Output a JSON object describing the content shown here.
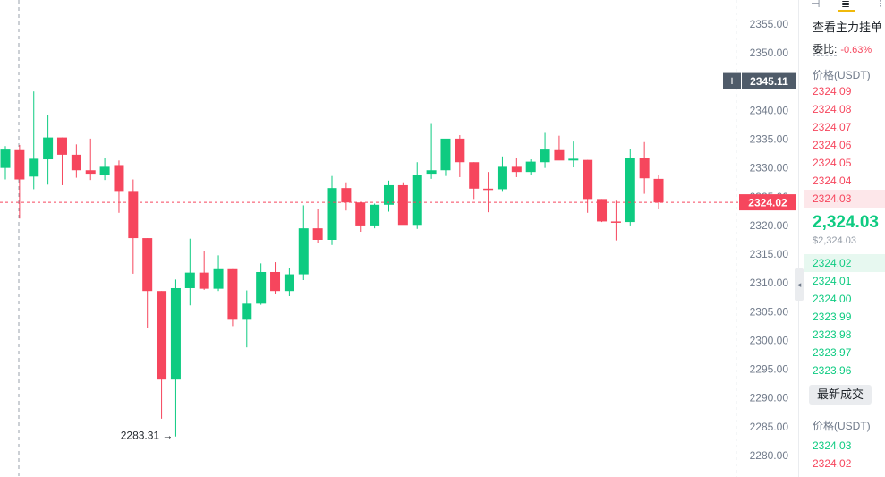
{
  "chart_data": {
    "type": "candlestick",
    "y_ticks": [
      "2355.00",
      "2350.00",
      "2345.00",
      "2340.00",
      "2335.00",
      "2330.00",
      "2325.00",
      "2320.00",
      "2315.00",
      "2310.00",
      "2305.00",
      "2300.00",
      "2295.00",
      "2290.00",
      "2285.00",
      "2280.00"
    ],
    "ylim": [
      2278.5,
      2357.8
    ],
    "crosshair_price": "2345.11",
    "current_price": "2324.02",
    "low_marker": "2283.31",
    "low_arrow": "→",
    "crosshair_plus": "+",
    "candles": [
      {
        "o": 2330.0,
        "h": 2333.8,
        "l": 2328.0,
        "c": 2333.2
      },
      {
        "o": 2333.1,
        "h": 2334.0,
        "l": 2321.2,
        "c": 2328.0
      },
      {
        "o": 2328.5,
        "h": 2343.3,
        "l": 2326.3,
        "c": 2331.6
      },
      {
        "o": 2331.5,
        "h": 2339.2,
        "l": 2327.1,
        "c": 2335.3
      },
      {
        "o": 2335.3,
        "h": 2335.3,
        "l": 2327.0,
        "c": 2332.3
      },
      {
        "o": 2332.3,
        "h": 2334.1,
        "l": 2328.3,
        "c": 2329.6
      },
      {
        "o": 2329.6,
        "h": 2335.1,
        "l": 2327.9,
        "c": 2329.0
      },
      {
        "o": 2328.8,
        "h": 2331.8,
        "l": 2327.9,
        "c": 2330.2
      },
      {
        "o": 2330.5,
        "h": 2331.3,
        "l": 2322.2,
        "c": 2326.0
      },
      {
        "o": 2326.0,
        "h": 2328.0,
        "l": 2311.6,
        "c": 2317.8
      },
      {
        "o": 2317.8,
        "h": 2317.8,
        "l": 2302.1,
        "c": 2308.6
      },
      {
        "o": 2308.6,
        "h": 2308.6,
        "l": 2286.4,
        "c": 2293.2
      },
      {
        "o": 2293.2,
        "h": 2310.6,
        "l": 2283.3,
        "c": 2309.1
      },
      {
        "o": 2309.1,
        "h": 2317.7,
        "l": 2306.1,
        "c": 2311.8
      },
      {
        "o": 2311.8,
        "h": 2315.6,
        "l": 2308.8,
        "c": 2309.0
      },
      {
        "o": 2309.0,
        "h": 2314.8,
        "l": 2308.6,
        "c": 2312.4
      },
      {
        "o": 2312.4,
        "h": 2312.4,
        "l": 2302.5,
        "c": 2303.6
      },
      {
        "o": 2303.6,
        "h": 2308.7,
        "l": 2298.8,
        "c": 2306.4
      },
      {
        "o": 2306.4,
        "h": 2313.4,
        "l": 2306.2,
        "c": 2311.9
      },
      {
        "o": 2311.9,
        "h": 2313.6,
        "l": 2308.1,
        "c": 2308.6
      },
      {
        "o": 2308.6,
        "h": 2312.6,
        "l": 2307.7,
        "c": 2311.5
      },
      {
        "o": 2311.5,
        "h": 2323.5,
        "l": 2310.5,
        "c": 2319.5
      },
      {
        "o": 2319.5,
        "h": 2322.9,
        "l": 2316.9,
        "c": 2317.5
      },
      {
        "o": 2317.5,
        "h": 2328.6,
        "l": 2316.6,
        "c": 2326.5
      },
      {
        "o": 2326.5,
        "h": 2327.5,
        "l": 2322.6,
        "c": 2324.0
      },
      {
        "o": 2324.0,
        "h": 2324.0,
        "l": 2318.9,
        "c": 2320.0
      },
      {
        "o": 2320.0,
        "h": 2323.8,
        "l": 2319.5,
        "c": 2323.6
      },
      {
        "o": 2323.6,
        "h": 2327.8,
        "l": 2322.4,
        "c": 2327.0
      },
      {
        "o": 2327.0,
        "h": 2327.5,
        "l": 2320.8,
        "c": 2320.1
      },
      {
        "o": 2320.1,
        "h": 2331.0,
        "l": 2319.4,
        "c": 2328.8
      },
      {
        "o": 2329.0,
        "h": 2337.8,
        "l": 2328.1,
        "c": 2329.6
      },
      {
        "o": 2329.6,
        "h": 2334.9,
        "l": 2328.6,
        "c": 2335.1
      },
      {
        "o": 2335.1,
        "h": 2335.7,
        "l": 2328.4,
        "c": 2331.0
      },
      {
        "o": 2331.0,
        "h": 2331.0,
        "l": 2324.6,
        "c": 2326.4
      },
      {
        "o": 2326.4,
        "h": 2329.3,
        "l": 2322.3,
        "c": 2326.3
      },
      {
        "o": 2326.3,
        "h": 2332.0,
        "l": 2326.0,
        "c": 2330.2
      },
      {
        "o": 2330.2,
        "h": 2331.8,
        "l": 2328.4,
        "c": 2329.3
      },
      {
        "o": 2329.3,
        "h": 2331.5,
        "l": 2328.8,
        "c": 2331.1
      },
      {
        "o": 2331.0,
        "h": 2336.1,
        "l": 2330.0,
        "c": 2333.2
      },
      {
        "o": 2333.1,
        "h": 2335.6,
        "l": 2331.4,
        "c": 2331.3
      },
      {
        "o": 2331.3,
        "h": 2334.6,
        "l": 2330.1,
        "c": 2331.6
      },
      {
        "o": 2331.4,
        "h": 2331.4,
        "l": 2322.2,
        "c": 2324.6
      },
      {
        "o": 2324.6,
        "h": 2324.6,
        "l": 2320.6,
        "c": 2320.7
      },
      {
        "o": 2320.7,
        "h": 2324.3,
        "l": 2317.4,
        "c": 2320.6
      },
      {
        "o": 2320.6,
        "h": 2333.3,
        "l": 2320.0,
        "c": 2331.8
      },
      {
        "o": 2331.8,
        "h": 2334.5,
        "l": 2325.5,
        "c": 2328.2
      },
      {
        "o": 2328.1,
        "h": 2328.8,
        "l": 2322.8,
        "c": 2324.0
      }
    ]
  },
  "panel": {
    "tool_icons": [
      "⊣",
      "≣",
      "⁝"
    ],
    "title": "查看主力挂单",
    "ratio_label": "委比:",
    "ratio_value": "-0.63%",
    "col_header": "价格(USDT)",
    "asks": [
      "2324.09",
      "2324.08",
      "2324.07",
      "2324.06",
      "2324.05",
      "2324.04",
      "2324.03"
    ],
    "last_price": "2,324.03",
    "last_price_usd": "$2,324.03",
    "bids": [
      "2324.02",
      "2324.01",
      "2324.00",
      "2323.99",
      "2323.98",
      "2323.97",
      "2323.96"
    ],
    "latest_trades_button": "最新成交",
    "trades_header": "价格(USDT)",
    "trades": [
      {
        "price": "2324.03",
        "side": "buy"
      },
      {
        "price": "2324.02",
        "side": "sell"
      }
    ]
  },
  "colors": {
    "up": "#0ecb81",
    "down": "#f6465d",
    "axis_text": "#707a8a",
    "crosshair": "#9aa1ab",
    "crosshair_label_bg": "#4f5b69"
  }
}
